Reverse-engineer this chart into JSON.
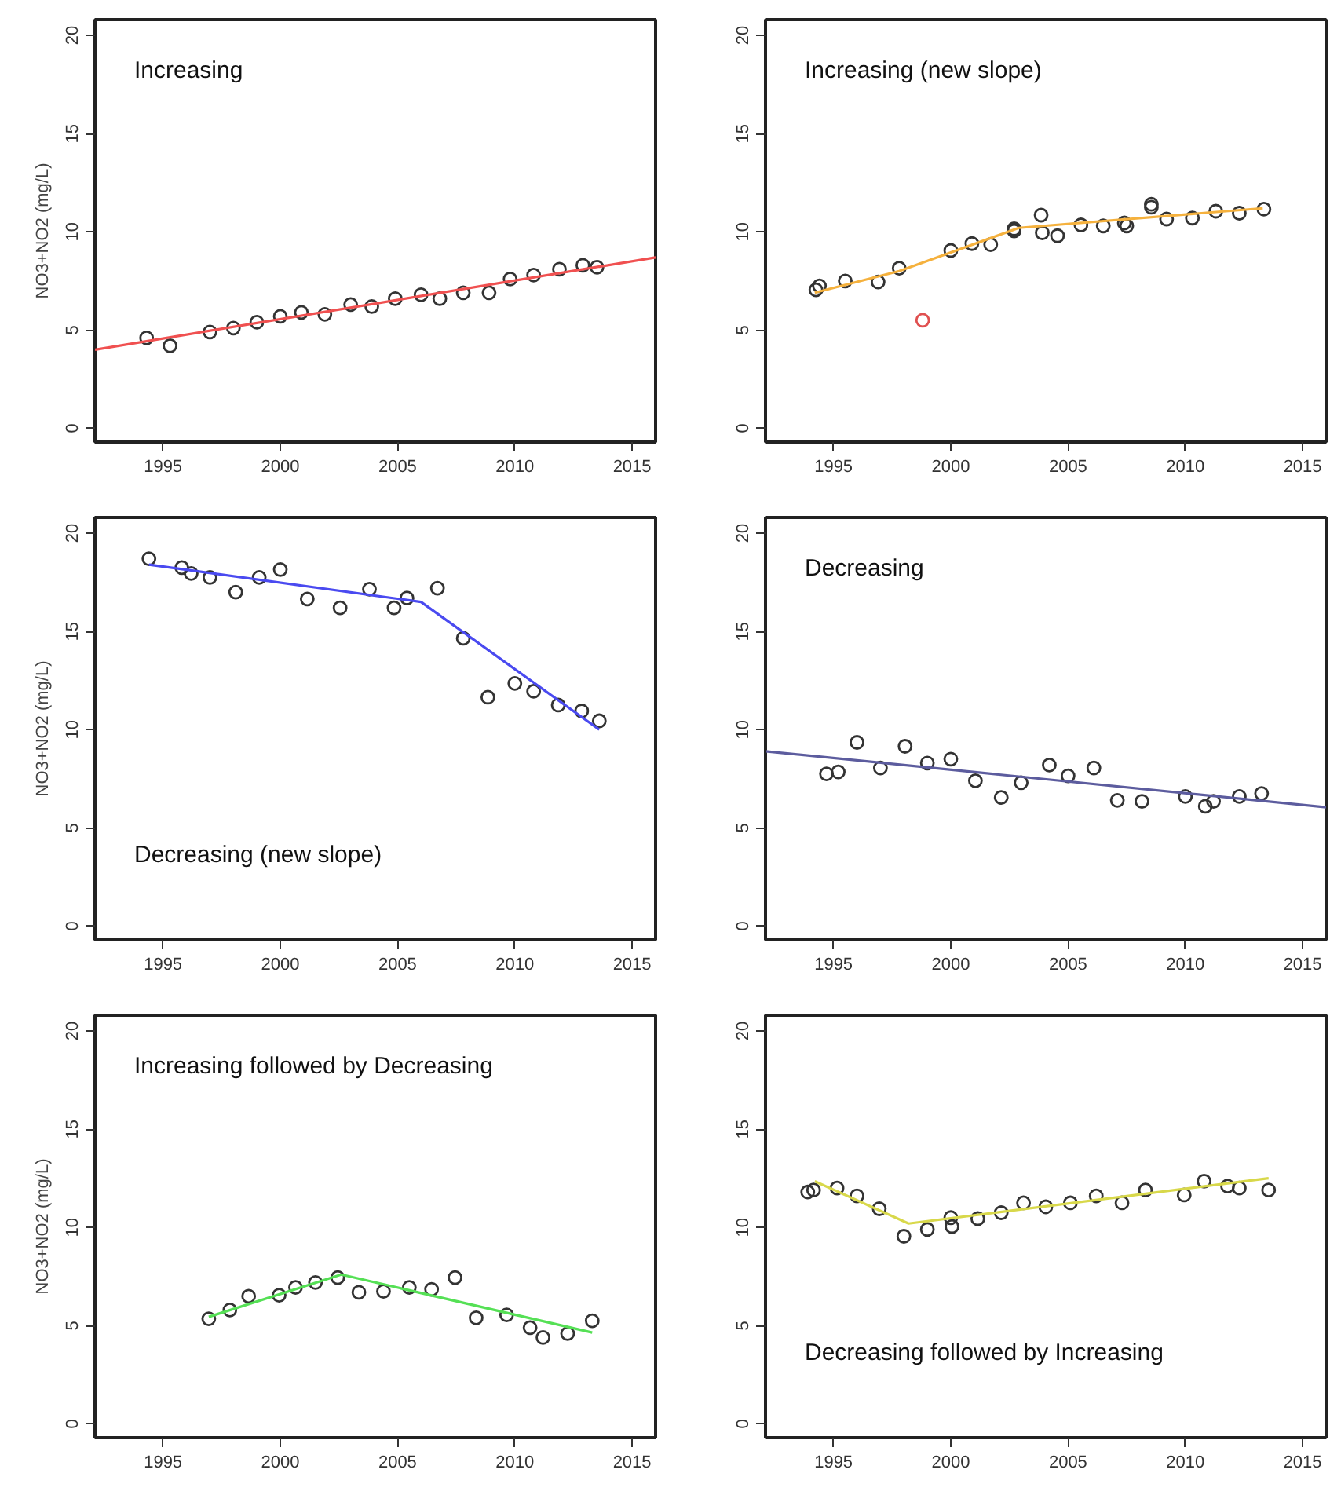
{
  "chart_data": [
    {
      "type": "scatter",
      "ylabel": "NO3+NO2 (mg/L)",
      "annotations": [
        "Increasing"
      ],
      "xlim": [
        1992.1,
        2016
      ],
      "ylim": [
        -0.7,
        20.8
      ],
      "xticks": [
        1995,
        2000,
        2005,
        2010,
        2015
      ],
      "yticks": [
        0,
        5,
        10,
        15,
        20
      ],
      "marker": "circle",
      "series": [
        {
          "color": "#333333",
          "x": [
            1994.3,
            1995.3,
            1997.0,
            1998.0,
            1999.0,
            2000.0,
            2000.9,
            2001.9,
            2003.0,
            2003.9,
            2004.9,
            2006.0,
            2006.8,
            2007.8,
            2008.9,
            2009.8,
            2010.8,
            2011.9,
            2012.9,
            2013.5
          ],
          "values": [
            4.6,
            4.2,
            4.9,
            5.1,
            5.4,
            5.7,
            5.9,
            5.8,
            6.3,
            6.2,
            6.6,
            6.8,
            6.6,
            6.9,
            6.9,
            7.6,
            7.8,
            8.1,
            8.3,
            8.2
          ]
        },
        {
          "type": "line",
          "marker": "none",
          "color": "#f05050",
          "x": [
            1992.1,
            2016
          ],
          "values": [
            4.0,
            8.7
          ]
        }
      ]
    },
    {
      "type": "scatter",
      "annotations": [
        "Increasing (new slope)"
      ],
      "xlim": [
        1992.1,
        2016
      ],
      "ylim": [
        -0.7,
        20.8
      ],
      "xticks": [
        1995,
        2000,
        2005,
        2010,
        2015
      ],
      "yticks": [
        0,
        5,
        10,
        15,
        20
      ],
      "marker": "circle",
      "series": [
        {
          "color": "#333333",
          "x": [
            1994.25,
            1994.4,
            1995.5,
            1996.9,
            1997.8,
            2000.0,
            2000.9,
            2001.7,
            2002.7,
            2002.7,
            2003.85,
            2003.9,
            2004.55,
            2005.55,
            2006.5,
            2007.4,
            2007.5,
            2008.55,
            2008.55,
            2009.2,
            2010.3,
            2011.3,
            2012.3,
            2013.35
          ],
          "values": [
            7.05,
            7.25,
            7.5,
            7.45,
            8.15,
            9.05,
            9.4,
            9.35,
            10.15,
            10.05,
            10.85,
            9.95,
            9.8,
            10.35,
            10.3,
            10.45,
            10.3,
            11.4,
            11.25,
            10.65,
            10.7,
            11.05,
            10.95,
            11.15
          ]
        },
        {
          "color": "#e05050",
          "x": [
            1998.8
          ],
          "values": [
            5.5
          ]
        },
        {
          "type": "line",
          "marker": "none",
          "color": "#f5b13d",
          "x": [
            1994.2,
            1997.8,
            2002.9,
            2013.3
          ],
          "values": [
            6.9,
            8.0,
            10.2,
            11.2
          ]
        }
      ]
    },
    {
      "type": "scatter",
      "ylabel": "NO3+NO2 (mg/L)",
      "annotations": [
        "Decreasing (new slope)"
      ],
      "xlim": [
        1992.1,
        2016
      ],
      "ylim": [
        -0.7,
        20.8
      ],
      "xticks": [
        1995,
        2000,
        2005,
        2010,
        2015
      ],
      "yticks": [
        0,
        5,
        10,
        15,
        20
      ],
      "marker": "circle",
      "series": [
        {
          "color": "#333333",
          "x": [
            1994.4,
            1995.8,
            1996.2,
            1997.0,
            1998.1,
            1999.1,
            2000.0,
            2001.15,
            2002.55,
            2003.8,
            2004.85,
            2005.4,
            2006.7,
            2007.8,
            2008.85,
            2010.0,
            2010.8,
            2011.85,
            2012.85,
            2013.6
          ],
          "values": [
            18.7,
            18.25,
            17.95,
            17.75,
            17.0,
            17.75,
            18.15,
            16.65,
            16.2,
            17.15,
            16.2,
            16.7,
            17.2,
            14.65,
            11.65,
            12.35,
            11.95,
            11.25,
            10.95,
            10.45
          ]
        },
        {
          "type": "line",
          "marker": "none",
          "color": "#4a4af0",
          "x": [
            1994.4,
            2006.0,
            2013.6
          ],
          "values": [
            18.4,
            16.5,
            10.0
          ]
        }
      ]
    },
    {
      "type": "scatter",
      "annotations": [
        "Decreasing"
      ],
      "xlim": [
        1992.1,
        2016
      ],
      "ylim": [
        -0.7,
        20.8
      ],
      "xticks": [
        1995,
        2000,
        2005,
        2010,
        2015
      ],
      "yticks": [
        0,
        5,
        10,
        15,
        20
      ],
      "marker": "circle",
      "series": [
        {
          "color": "#333333",
          "x": [
            1994.7,
            1995.2,
            1996.0,
            1997.0,
            1998.05,
            1999.0,
            2000.0,
            2001.05,
            2002.15,
            2003.0,
            2004.2,
            2005.0,
            2006.1,
            2007.1,
            2008.15,
            2010.0,
            2010.85,
            2011.2,
            2012.3,
            2013.25
          ],
          "values": [
            7.75,
            7.85,
            9.35,
            8.05,
            9.15,
            8.3,
            8.5,
            7.4,
            6.55,
            7.3,
            8.2,
            7.65,
            8.05,
            6.4,
            6.35,
            6.6,
            6.1,
            6.35,
            6.6,
            6.75
          ]
        },
        {
          "type": "line",
          "marker": "none",
          "color": "#5c5c9e",
          "x": [
            1992.1,
            2016
          ],
          "values": [
            8.9,
            6.05
          ]
        }
      ]
    },
    {
      "type": "scatter",
      "ylabel": "NO3+NO2 (mg/L)",
      "annotations": [
        "Increasing followed by Decreasing"
      ],
      "xlim": [
        1992.1,
        2016
      ],
      "ylim": [
        -0.7,
        20.8
      ],
      "xticks": [
        1995,
        2000,
        2005,
        2010,
        2015
      ],
      "yticks": [
        0,
        5,
        10,
        15,
        20
      ],
      "marker": "circle",
      "series": [
        {
          "color": "#333333",
          "x": [
            1996.95,
            1997.85,
            1998.65,
            1999.95,
            2000.65,
            2001.5,
            2002.45,
            2003.35,
            2004.4,
            2005.5,
            2006.45,
            2007.45,
            2008.35,
            2009.65,
            2010.65,
            2011.2,
            2012.25,
            2013.3
          ],
          "values": [
            5.35,
            5.8,
            6.5,
            6.55,
            6.95,
            7.2,
            7.45,
            6.7,
            6.75,
            6.95,
            6.85,
            7.45,
            5.4,
            5.55,
            4.9,
            4.4,
            4.6,
            5.25
          ]
        },
        {
          "type": "line",
          "marker": "none",
          "color": "#55e055",
          "x": [
            1996.95,
            2002.6,
            2013.3
          ],
          "values": [
            5.45,
            7.6,
            4.65
          ]
        }
      ]
    },
    {
      "type": "scatter",
      "annotations": [
        "Decreasing followed by Increasing"
      ],
      "xlim": [
        1992.1,
        2016
      ],
      "ylim": [
        -0.7,
        20.8
      ],
      "xticks": [
        1995,
        2000,
        2005,
        2010,
        2015
      ],
      "yticks": [
        0,
        5,
        10,
        15,
        20
      ],
      "marker": "circle",
      "series": [
        {
          "color": "#333333",
          "x": [
            1993.9,
            1994.15,
            1995.15,
            1996.0,
            1996.95,
            1998.0,
            1999.0,
            2000.0,
            2000.05,
            2001.15,
            2002.15,
            2003.1,
            2004.05,
            2005.1,
            2006.2,
            2007.3,
            2008.3,
            2009.95,
            2010.8,
            2011.8,
            2012.3,
            2013.55
          ],
          "values": [
            11.8,
            11.9,
            12.0,
            11.6,
            10.95,
            9.55,
            9.9,
            10.5,
            10.05,
            10.45,
            10.75,
            11.25,
            11.05,
            11.25,
            11.6,
            11.25,
            11.9,
            11.65,
            12.35,
            12.1,
            12.0,
            11.9
          ]
        },
        {
          "type": "line",
          "marker": "none",
          "color": "#d8d84a",
          "x": [
            1994.2,
            1998.2,
            2013.55
          ],
          "values": [
            12.35,
            10.2,
            12.5
          ]
        }
      ]
    }
  ]
}
